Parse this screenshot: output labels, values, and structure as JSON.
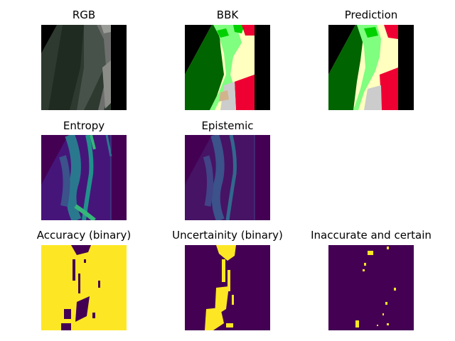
{
  "figure": {
    "titles": {
      "rgb": "RGB",
      "bbk": "BBK",
      "prediction": "Prediction",
      "entropy": "Entropy",
      "epistemic": "Epistemic",
      "accuracy_binary": "Accuracy (binary)",
      "uncertainity_binary": "Uncertainity (binary)",
      "inaccurate_certain": "Inaccurate and certain"
    },
    "colors": {
      "nodata": "#000000",
      "forest_dark": "#006400",
      "meadow_green": "#7ffe7f",
      "bright_green": "#00d000",
      "cream": "#ffffc0",
      "red": "#ee0033",
      "grey": "#cccccc",
      "tan": "#d2b48c",
      "viridis_low": "#440154",
      "viridis_mid": "#2a788e",
      "viridis_high": "#fde725"
    }
  }
}
